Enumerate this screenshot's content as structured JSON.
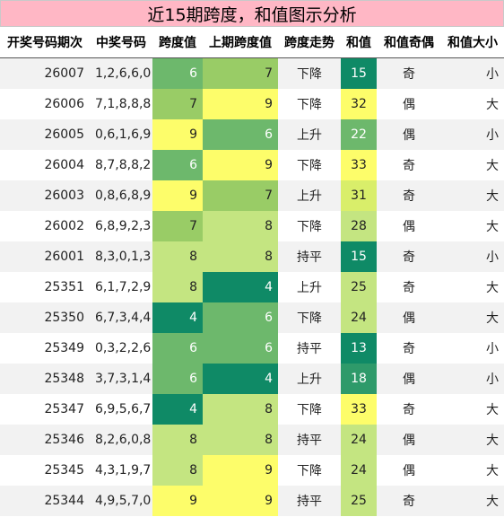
{
  "title": "近15期跨度，和值图示分析",
  "headers": [
    "开奖号码期次",
    "中奖号码",
    "跨度值",
    "上期跨度值",
    "跨度走势",
    "和值",
    "和值奇偶",
    "和值大小"
  ],
  "rows": [
    {
      "period": "26007",
      "numbers": "1,2,6,6,0",
      "span": "6",
      "prev_span": "7",
      "trend": "下降",
      "sum": "15",
      "parity": "奇",
      "size": "小"
    },
    {
      "period": "26006",
      "numbers": "7,1,8,8,8",
      "span": "7",
      "prev_span": "9",
      "trend": "下降",
      "sum": "32",
      "parity": "偶",
      "size": "大"
    },
    {
      "period": "26005",
      "numbers": "0,6,1,6,9",
      "span": "9",
      "prev_span": "6",
      "trend": "上升",
      "sum": "22",
      "parity": "偶",
      "size": "小"
    },
    {
      "period": "26004",
      "numbers": "8,7,8,8,2",
      "span": "6",
      "prev_span": "9",
      "trend": "下降",
      "sum": "33",
      "parity": "奇",
      "size": "大"
    },
    {
      "period": "26003",
      "numbers": "0,8,6,8,9",
      "span": "9",
      "prev_span": "7",
      "trend": "上升",
      "sum": "31",
      "parity": "奇",
      "size": "大"
    },
    {
      "period": "26002",
      "numbers": "6,8,9,2,3",
      "span": "7",
      "prev_span": "8",
      "trend": "下降",
      "sum": "28",
      "parity": "偶",
      "size": "大"
    },
    {
      "period": "26001",
      "numbers": "8,3,0,1,3",
      "span": "8",
      "prev_span": "8",
      "trend": "持平",
      "sum": "15",
      "parity": "奇",
      "size": "小"
    },
    {
      "period": "25351",
      "numbers": "6,1,7,2,9",
      "span": "8",
      "prev_span": "4",
      "trend": "上升",
      "sum": "25",
      "parity": "奇",
      "size": "大"
    },
    {
      "period": "25350",
      "numbers": "6,7,3,4,4",
      "span": "4",
      "prev_span": "6",
      "trend": "下降",
      "sum": "24",
      "parity": "偶",
      "size": "大"
    },
    {
      "period": "25349",
      "numbers": "0,3,2,2,6",
      "span": "6",
      "prev_span": "6",
      "trend": "持平",
      "sum": "13",
      "parity": "奇",
      "size": "小"
    },
    {
      "period": "25348",
      "numbers": "3,7,3,1,4",
      "span": "6",
      "prev_span": "4",
      "trend": "上升",
      "sum": "18",
      "parity": "偶",
      "size": "小"
    },
    {
      "period": "25347",
      "numbers": "6,9,5,6,7",
      "span": "4",
      "prev_span": "8",
      "trend": "下降",
      "sum": "33",
      "parity": "奇",
      "size": "大"
    },
    {
      "period": "25346",
      "numbers": "8,2,6,0,8",
      "span": "8",
      "prev_span": "8",
      "trend": "持平",
      "sum": "24",
      "parity": "偶",
      "size": "大"
    },
    {
      "period": "25345",
      "numbers": "4,3,1,9,7",
      "span": "8",
      "prev_span": "9",
      "trend": "下降",
      "sum": "24",
      "parity": "偶",
      "size": "大"
    },
    {
      "period": "25344",
      "numbers": "4,9,5,7,0",
      "span": "9",
      "prev_span": "9",
      "trend": "持平",
      "sum": "25",
      "parity": "奇",
      "size": "大"
    }
  ],
  "colors": {
    "title_bg": "#ffb7c5",
    "heat_high": "#0f8a66",
    "heat_low": "#fdfd6a",
    "zebra": "#f2f2f2"
  }
}
